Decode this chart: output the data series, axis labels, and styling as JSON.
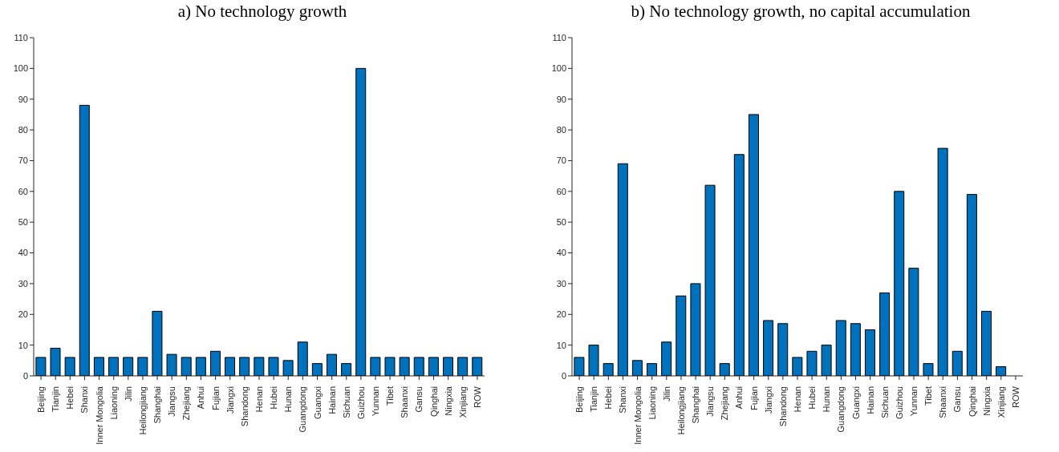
{
  "chart_data": [
    {
      "type": "bar",
      "title": "a) No technology growth",
      "categories": [
        "Beijing",
        "Tianjin",
        "Hebei",
        "Shanxi",
        "Inner Mongolia",
        "Liaoning",
        "Jilin",
        "Heilongjiang",
        "Shanghai",
        "Jiangsu",
        "Zhejiang",
        "Anhui",
        "Fujian",
        "Jiangxi",
        "Shandong",
        "Henan",
        "Hubei",
        "Hunan",
        "Guangdong",
        "Guangxi",
        "Hainan",
        "Sichuan",
        "Guizhou",
        "Yunnan",
        "Tibet",
        "Shaanxi",
        "Gansu",
        "Qinghai",
        "Ningxia",
        "Xinjiang",
        "ROW"
      ],
      "values": [
        6,
        9,
        6,
        88,
        6,
        6,
        6,
        6,
        21,
        7,
        6,
        6,
        8,
        6,
        6,
        6,
        6,
        5,
        11,
        4,
        7,
        4,
        100,
        6,
        6,
        6,
        6,
        6,
        6,
        6,
        6
      ],
      "color": "#0072bd",
      "ylim": [
        0,
        110
      ],
      "yticks": [
        0,
        10,
        20,
        30,
        40,
        50,
        60,
        70,
        80,
        90,
        100,
        110
      ],
      "grid": false
    },
    {
      "type": "bar",
      "title": "b) No technology growth, no capital accumulation",
      "categories": [
        "Beijing",
        "Tianjin",
        "Hebei",
        "Shanxi",
        "Inner Mongolia",
        "Liaoning",
        "Jilin",
        "Heilongjiang",
        "Shanghai",
        "Jiangsu",
        "Zhejiang",
        "Anhui",
        "Fujian",
        "Jiangxi",
        "Shandong",
        "Henan",
        "Hubei",
        "Hunan",
        "Guangdong",
        "Guangxi",
        "Hainan",
        "Sichuan",
        "Guizhou",
        "Yunnan",
        "Tibet",
        "Shaanxi",
        "Gansu",
        "Qinghai",
        "Ningxia",
        "Xinjiang",
        "ROW"
      ],
      "values": [
        6,
        10,
        4,
        69,
        5,
        4,
        11,
        26,
        30,
        62,
        4,
        72,
        85,
        18,
        17,
        6,
        8,
        10,
        18,
        17,
        15,
        27,
        60,
        35,
        4,
        74,
        8,
        59,
        21,
        3,
        0
      ],
      "color": "#0072bd",
      "ylim": [
        0,
        110
      ],
      "yticks": [
        0,
        10,
        20,
        30,
        40,
        50,
        60,
        70,
        80,
        90,
        100,
        110
      ],
      "grid": false
    }
  ]
}
